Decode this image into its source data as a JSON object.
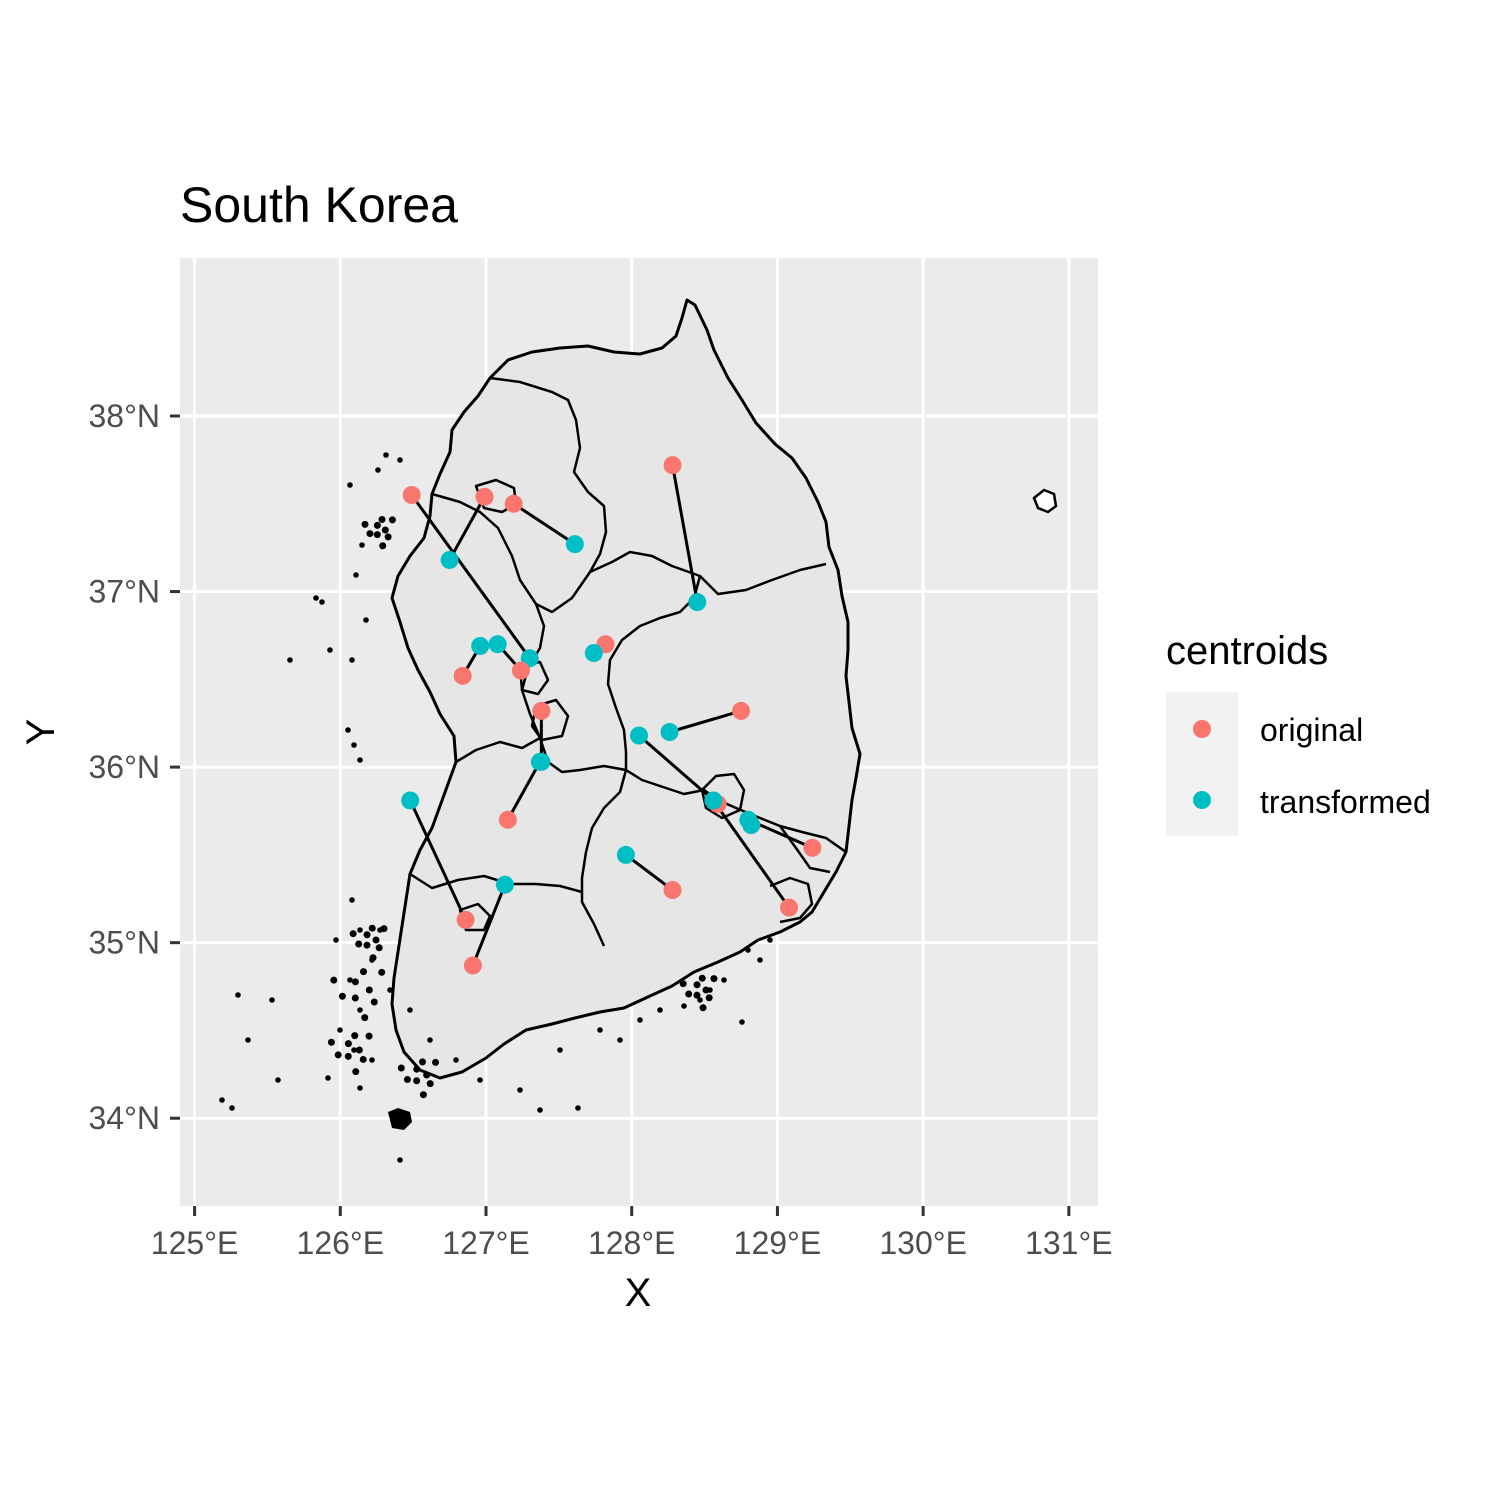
{
  "chart_data": {
    "type": "map",
    "title": "South Korea",
    "xlabel": "X",
    "ylabel": "Y",
    "xlim": [
      124.9,
      131.2
    ],
    "ylim": [
      33.5,
      38.9
    ],
    "x_ticks": [
      {
        "value": 125,
        "label": "125°E"
      },
      {
        "value": 126,
        "label": "126°E"
      },
      {
        "value": 127,
        "label": "127°E"
      },
      {
        "value": 128,
        "label": "128°E"
      },
      {
        "value": 129,
        "label": "129°E"
      },
      {
        "value": 130,
        "label": "130°E"
      },
      {
        "value": 131,
        "label": "131°E"
      }
    ],
    "y_ticks": [
      {
        "value": 34,
        "label": "34°N"
      },
      {
        "value": 35,
        "label": "35°N"
      },
      {
        "value": 36,
        "label": "36°N"
      },
      {
        "value": 37,
        "label": "37°N"
      },
      {
        "value": 38,
        "label": "38°N"
      }
    ],
    "grid": true,
    "legend": {
      "title": "centroids",
      "position": "right",
      "items": [
        {
          "label": "original",
          "color": "#F8766D"
        },
        {
          "label": "transformed",
          "color": "#00BFC4"
        }
      ]
    },
    "pairs": [
      {
        "original": [
          126.49,
          37.55
        ],
        "transformed": [
          127.3,
          36.62
        ]
      },
      {
        "original": [
          126.99,
          37.54
        ],
        "transformed": [
          126.75,
          37.18
        ]
      },
      {
        "original": [
          127.19,
          37.5
        ],
        "transformed": [
          127.61,
          37.27
        ]
      },
      {
        "original": [
          128.28,
          37.72
        ],
        "transformed": [
          128.45,
          36.94
        ]
      },
      {
        "original": [
          127.82,
          36.7
        ],
        "transformed": [
          127.74,
          36.65
        ]
      },
      {
        "original": [
          126.84,
          36.52
        ],
        "transformed": [
          126.96,
          36.69
        ]
      },
      {
        "original": [
          127.24,
          36.55
        ],
        "transformed": [
          127.08,
          36.7
        ]
      },
      {
        "original": [
          127.38,
          36.32
        ],
        "transformed": [
          127.38,
          36.03
        ]
      },
      {
        "original": [
          128.75,
          36.32
        ],
        "transformed": [
          128.26,
          36.2
        ]
      },
      {
        "original": [
          127.15,
          35.7
        ],
        "transformed": [
          127.37,
          36.03
        ]
      },
      {
        "original": [
          128.59,
          35.79
        ],
        "transformed": [
          128.05,
          36.18
        ]
      },
      {
        "original": [
          129.24,
          35.54
        ],
        "transformed": [
          128.8,
          35.7
        ]
      },
      {
        "original": [
          129.08,
          35.2
        ],
        "transformed": [
          128.56,
          35.81
        ]
      },
      {
        "original": [
          128.28,
          35.3
        ],
        "transformed": [
          127.96,
          35.5
        ]
      },
      {
        "original": [
          126.86,
          35.13
        ],
        "transformed": [
          126.48,
          35.81
        ]
      },
      {
        "original": [
          126.91,
          34.87
        ],
        "transformed": [
          127.13,
          35.33
        ]
      },
      {
        "original": [
          128.82,
          35.67
        ],
        "transformed": [
          128.82,
          35.67
        ]
      }
    ]
  }
}
